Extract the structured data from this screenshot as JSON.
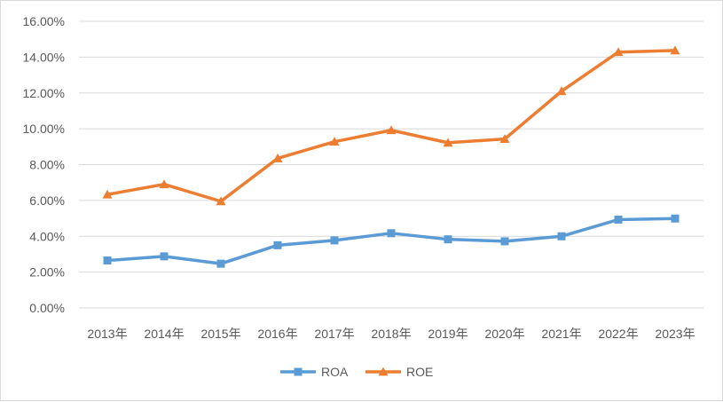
{
  "chart_data": {
    "type": "line",
    "title": "",
    "xlabel": "",
    "ylabel": "",
    "categories": [
      "2013年",
      "2014年",
      "2015年",
      "2016年",
      "2017年",
      "2018年",
      "2019年",
      "2020年",
      "2021年",
      "2022年",
      "2023年"
    ],
    "series": [
      {
        "name": "ROA",
        "color": "#5b9bd5",
        "marker": "square",
        "values": [
          2.65,
          2.88,
          2.47,
          3.5,
          3.77,
          4.17,
          3.83,
          3.72,
          4.0,
          4.93,
          4.99
        ]
      },
      {
        "name": "ROE",
        "color": "#ed7d31",
        "marker": "triangle",
        "values": [
          6.33,
          6.9,
          5.95,
          8.35,
          9.28,
          9.92,
          9.22,
          9.43,
          12.1,
          14.28,
          14.37
        ]
      }
    ],
    "ylim": [
      0,
      16
    ],
    "ytick_labels": [
      "0.00%",
      "2.00%",
      "4.00%",
      "6.00%",
      "8.00%",
      "10.00%",
      "12.00%",
      "14.00%",
      "16.00%"
    ],
    "grid": true,
    "legend": "bottom"
  }
}
